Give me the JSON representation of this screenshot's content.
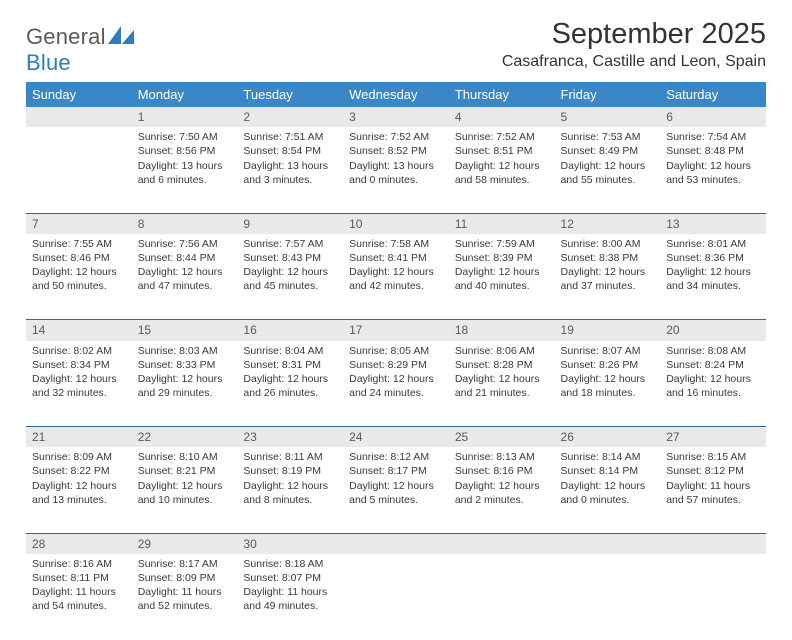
{
  "logo": {
    "general": "General",
    "blue": "Blue"
  },
  "title": "September 2025",
  "location": "Casafranca, Castille and Leon, Spain",
  "colors": {
    "header_bg": "#3a87c8",
    "header_text": "#ffffff",
    "daynum_bg": "#e9e9e9",
    "daynum_text": "#5b5b5b",
    "body_text": "#3a3a3a",
    "rule": "#2f6aa3",
    "logo_gray": "#5a5a5a",
    "logo_blue": "#2f7bbf"
  },
  "dayNames": [
    "Sunday",
    "Monday",
    "Tuesday",
    "Wednesday",
    "Thursday",
    "Friday",
    "Saturday"
  ],
  "weeks": [
    {
      "nums": [
        "",
        "1",
        "2",
        "3",
        "4",
        "5",
        "6"
      ],
      "cells": [
        {
          "sunrise": "",
          "sunset": "",
          "daylight1": "",
          "daylight2": ""
        },
        {
          "sunrise": "Sunrise: 7:50 AM",
          "sunset": "Sunset: 8:56 PM",
          "daylight1": "Daylight: 13 hours",
          "daylight2": "and 6 minutes."
        },
        {
          "sunrise": "Sunrise: 7:51 AM",
          "sunset": "Sunset: 8:54 PM",
          "daylight1": "Daylight: 13 hours",
          "daylight2": "and 3 minutes."
        },
        {
          "sunrise": "Sunrise: 7:52 AM",
          "sunset": "Sunset: 8:52 PM",
          "daylight1": "Daylight: 13 hours",
          "daylight2": "and 0 minutes."
        },
        {
          "sunrise": "Sunrise: 7:52 AM",
          "sunset": "Sunset: 8:51 PM",
          "daylight1": "Daylight: 12 hours",
          "daylight2": "and 58 minutes."
        },
        {
          "sunrise": "Sunrise: 7:53 AM",
          "sunset": "Sunset: 8:49 PM",
          "daylight1": "Daylight: 12 hours",
          "daylight2": "and 55 minutes."
        },
        {
          "sunrise": "Sunrise: 7:54 AM",
          "sunset": "Sunset: 8:48 PM",
          "daylight1": "Daylight: 12 hours",
          "daylight2": "and 53 minutes."
        }
      ]
    },
    {
      "nums": [
        "7",
        "8",
        "9",
        "10",
        "11",
        "12",
        "13"
      ],
      "cells": [
        {
          "sunrise": "Sunrise: 7:55 AM",
          "sunset": "Sunset: 8:46 PM",
          "daylight1": "Daylight: 12 hours",
          "daylight2": "and 50 minutes."
        },
        {
          "sunrise": "Sunrise: 7:56 AM",
          "sunset": "Sunset: 8:44 PM",
          "daylight1": "Daylight: 12 hours",
          "daylight2": "and 47 minutes."
        },
        {
          "sunrise": "Sunrise: 7:57 AM",
          "sunset": "Sunset: 8:43 PM",
          "daylight1": "Daylight: 12 hours",
          "daylight2": "and 45 minutes."
        },
        {
          "sunrise": "Sunrise: 7:58 AM",
          "sunset": "Sunset: 8:41 PM",
          "daylight1": "Daylight: 12 hours",
          "daylight2": "and 42 minutes."
        },
        {
          "sunrise": "Sunrise: 7:59 AM",
          "sunset": "Sunset: 8:39 PM",
          "daylight1": "Daylight: 12 hours",
          "daylight2": "and 40 minutes."
        },
        {
          "sunrise": "Sunrise: 8:00 AM",
          "sunset": "Sunset: 8:38 PM",
          "daylight1": "Daylight: 12 hours",
          "daylight2": "and 37 minutes."
        },
        {
          "sunrise": "Sunrise: 8:01 AM",
          "sunset": "Sunset: 8:36 PM",
          "daylight1": "Daylight: 12 hours",
          "daylight2": "and 34 minutes."
        }
      ]
    },
    {
      "nums": [
        "14",
        "15",
        "16",
        "17",
        "18",
        "19",
        "20"
      ],
      "cells": [
        {
          "sunrise": "Sunrise: 8:02 AM",
          "sunset": "Sunset: 8:34 PM",
          "daylight1": "Daylight: 12 hours",
          "daylight2": "and 32 minutes."
        },
        {
          "sunrise": "Sunrise: 8:03 AM",
          "sunset": "Sunset: 8:33 PM",
          "daylight1": "Daylight: 12 hours",
          "daylight2": "and 29 minutes."
        },
        {
          "sunrise": "Sunrise: 8:04 AM",
          "sunset": "Sunset: 8:31 PM",
          "daylight1": "Daylight: 12 hours",
          "daylight2": "and 26 minutes."
        },
        {
          "sunrise": "Sunrise: 8:05 AM",
          "sunset": "Sunset: 8:29 PM",
          "daylight1": "Daylight: 12 hours",
          "daylight2": "and 24 minutes."
        },
        {
          "sunrise": "Sunrise: 8:06 AM",
          "sunset": "Sunset: 8:28 PM",
          "daylight1": "Daylight: 12 hours",
          "daylight2": "and 21 minutes."
        },
        {
          "sunrise": "Sunrise: 8:07 AM",
          "sunset": "Sunset: 8:26 PM",
          "daylight1": "Daylight: 12 hours",
          "daylight2": "and 18 minutes."
        },
        {
          "sunrise": "Sunrise: 8:08 AM",
          "sunset": "Sunset: 8:24 PM",
          "daylight1": "Daylight: 12 hours",
          "daylight2": "and 16 minutes."
        }
      ]
    },
    {
      "nums": [
        "21",
        "22",
        "23",
        "24",
        "25",
        "26",
        "27"
      ],
      "cells": [
        {
          "sunrise": "Sunrise: 8:09 AM",
          "sunset": "Sunset: 8:22 PM",
          "daylight1": "Daylight: 12 hours",
          "daylight2": "and 13 minutes."
        },
        {
          "sunrise": "Sunrise: 8:10 AM",
          "sunset": "Sunset: 8:21 PM",
          "daylight1": "Daylight: 12 hours",
          "daylight2": "and 10 minutes."
        },
        {
          "sunrise": "Sunrise: 8:11 AM",
          "sunset": "Sunset: 8:19 PM",
          "daylight1": "Daylight: 12 hours",
          "daylight2": "and 8 minutes."
        },
        {
          "sunrise": "Sunrise: 8:12 AM",
          "sunset": "Sunset: 8:17 PM",
          "daylight1": "Daylight: 12 hours",
          "daylight2": "and 5 minutes."
        },
        {
          "sunrise": "Sunrise: 8:13 AM",
          "sunset": "Sunset: 8:16 PM",
          "daylight1": "Daylight: 12 hours",
          "daylight2": "and 2 minutes."
        },
        {
          "sunrise": "Sunrise: 8:14 AM",
          "sunset": "Sunset: 8:14 PM",
          "daylight1": "Daylight: 12 hours",
          "daylight2": "and 0 minutes."
        },
        {
          "sunrise": "Sunrise: 8:15 AM",
          "sunset": "Sunset: 8:12 PM",
          "daylight1": "Daylight: 11 hours",
          "daylight2": "and 57 minutes."
        }
      ]
    },
    {
      "nums": [
        "28",
        "29",
        "30",
        "",
        "",
        "",
        ""
      ],
      "cells": [
        {
          "sunrise": "Sunrise: 8:16 AM",
          "sunset": "Sunset: 8:11 PM",
          "daylight1": "Daylight: 11 hours",
          "daylight2": "and 54 minutes."
        },
        {
          "sunrise": "Sunrise: 8:17 AM",
          "sunset": "Sunset: 8:09 PM",
          "daylight1": "Daylight: 11 hours",
          "daylight2": "and 52 minutes."
        },
        {
          "sunrise": "Sunrise: 8:18 AM",
          "sunset": "Sunset: 8:07 PM",
          "daylight1": "Daylight: 11 hours",
          "daylight2": "and 49 minutes."
        },
        {
          "sunrise": "",
          "sunset": "",
          "daylight1": "",
          "daylight2": ""
        },
        {
          "sunrise": "",
          "sunset": "",
          "daylight1": "",
          "daylight2": ""
        },
        {
          "sunrise": "",
          "sunset": "",
          "daylight1": "",
          "daylight2": ""
        },
        {
          "sunrise": "",
          "sunset": "",
          "daylight1": "",
          "daylight2": ""
        }
      ]
    }
  ]
}
